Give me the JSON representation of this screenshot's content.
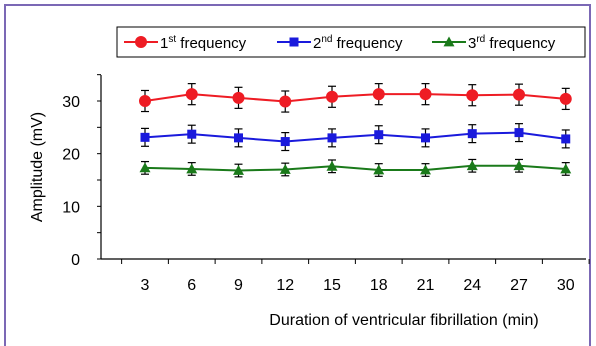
{
  "chart_data": {
    "type": "line",
    "categories": [
      "3",
      "6",
      "9",
      "12",
      "15",
      "18",
      "21",
      "24",
      "27",
      "30"
    ],
    "xlabel": "Duration of ventricular fibrillation (min)",
    "ylabel": "Amplitude (mV)",
    "ylim": [
      0,
      35
    ],
    "yticks": [
      "0",
      "10",
      "20",
      "30"
    ],
    "grid": false,
    "legend_position": "top",
    "series": [
      {
        "name_main": "1",
        "name_sup": "st",
        "name_rest": " frequency",
        "color": "#ee1c24",
        "marker": "circle",
        "values": [
          30.0,
          31.3,
          30.6,
          29.9,
          30.8,
          31.3,
          31.3,
          31.1,
          31.2,
          30.4
        ],
        "errors": [
          2.0,
          2.0,
          2.0,
          2.0,
          2.0,
          2.0,
          2.0,
          2.0,
          2.0,
          2.0
        ]
      },
      {
        "name_main": "2",
        "name_sup": "nd",
        "name_rest": " frequency",
        "color": "#1a1adc",
        "marker": "square",
        "values": [
          23.1,
          23.7,
          23.0,
          22.3,
          23.0,
          23.6,
          23.0,
          23.8,
          24.0,
          22.8
        ],
        "errors": [
          1.7,
          1.7,
          1.7,
          1.7,
          1.7,
          1.7,
          1.7,
          1.7,
          1.7,
          1.7
        ]
      },
      {
        "name_main": "3",
        "name_sup": "rd",
        "name_rest": " frequency",
        "color": "#1a7a1a",
        "marker": "triangle",
        "values": [
          17.3,
          17.1,
          16.8,
          17.0,
          17.6,
          16.9,
          16.9,
          17.7,
          17.7,
          17.1
        ],
        "errors": [
          1.2,
          1.2,
          1.2,
          1.2,
          1.2,
          1.2,
          1.2,
          1.2,
          1.2,
          1.2
        ]
      }
    ]
  }
}
